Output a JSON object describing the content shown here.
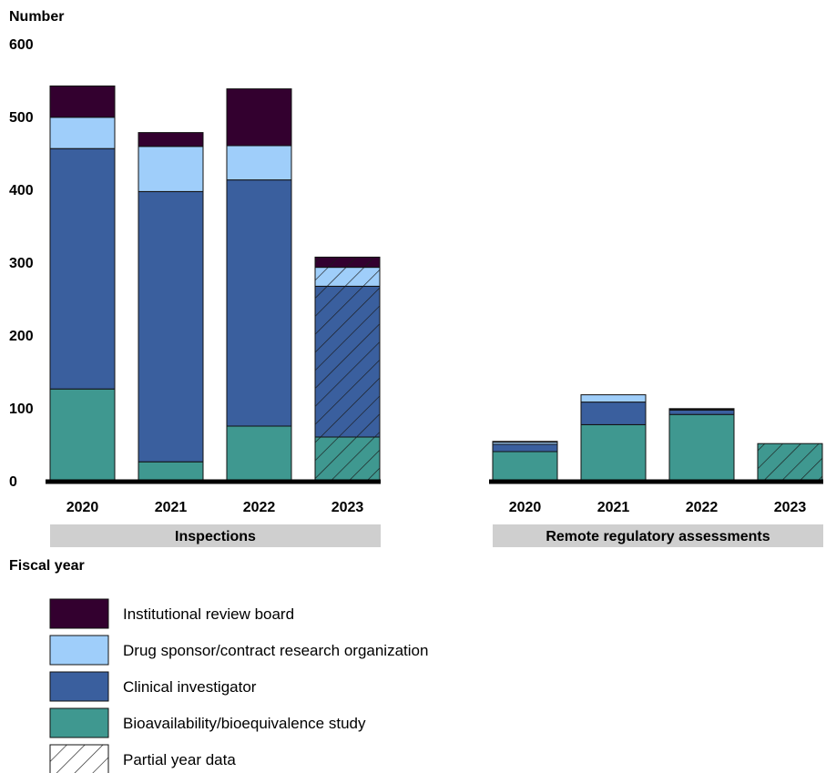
{
  "chart_data": {
    "type": "bar",
    "stacked": true,
    "ylabel": "Number",
    "xlabel": "Fiscal year",
    "ylim": [
      0,
      600
    ],
    "yticks": [
      0,
      100,
      200,
      300,
      400,
      500,
      600
    ],
    "grid": false,
    "legend_placement": "bottom-left",
    "series_meta": [
      {
        "key": "ba_be",
        "name": "Bioavailability/bioequivalence study",
        "color": "#3f9890"
      },
      {
        "key": "ci",
        "name": "Clinical investigator",
        "color": "#3a5f9e"
      },
      {
        "key": "sponsor",
        "name": "Drug sponsor/contract research organization",
        "color": "#9fcefa"
      },
      {
        "key": "irb",
        "name": "Institutional review board",
        "color": "#33002f"
      }
    ],
    "partial_legend_label": "Partial year data",
    "panels": [
      {
        "label": "Inspections",
        "categories": [
          "2020",
          "2021",
          "2022",
          "2023"
        ],
        "partial": [
          false,
          false,
          false,
          true
        ],
        "series": [
          {
            "key": "ba_be",
            "name": "Bioavailability/bioequivalence study",
            "values": [
              126,
              26,
              75,
              60
            ]
          },
          {
            "key": "ci",
            "name": "Clinical investigator",
            "values": [
              330,
              371,
              338,
              207
            ]
          },
          {
            "key": "sponsor",
            "name": "Drug sponsor/contract research organization",
            "values": [
              43,
              62,
              47,
              26
            ]
          },
          {
            "key": "irb",
            "name": "Institutional review board",
            "values": [
              43,
              19,
              78,
              14
            ]
          }
        ]
      },
      {
        "label": "Remote regulatory assessments",
        "categories": [
          "2020",
          "2021",
          "2022",
          "2023"
        ],
        "partial": [
          false,
          false,
          false,
          true
        ],
        "series": [
          {
            "key": "ba_be",
            "name": "Bioavailability/bioequivalence study",
            "values": [
              40,
              77,
              91,
              51
            ]
          },
          {
            "key": "ci",
            "name": "Clinical investigator",
            "values": [
              10,
              31,
              6,
              0
            ]
          },
          {
            "key": "sponsor",
            "name": "Drug sponsor/contract research organization",
            "values": [
              3,
              10,
              1,
              0
            ]
          },
          {
            "key": "irb",
            "name": "Institutional review board",
            "values": [
              1,
              0,
              1,
              0
            ]
          }
        ]
      }
    ]
  }
}
